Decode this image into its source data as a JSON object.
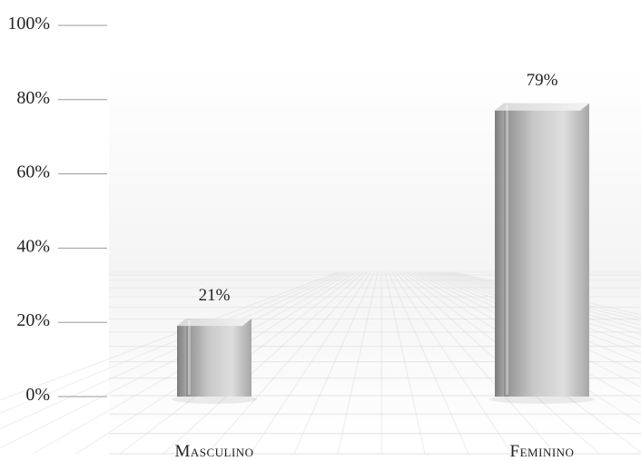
{
  "chart_data": {
    "type": "bar",
    "categories": [
      "Masculino",
      "Feminino"
    ],
    "values": [
      21,
      79
    ],
    "data_labels": [
      "21%",
      "79%"
    ],
    "yticks": [
      "0%",
      "20%",
      "40%",
      "60%",
      "80%",
      "100%"
    ],
    "ylim": [
      0,
      100
    ],
    "title": "",
    "xlabel": "",
    "ylabel": "",
    "grid": false,
    "legend": "none",
    "colors": {
      "bar": "#b9b9b9",
      "bar_light": "#e6e6e6",
      "bar_dark": "#8c8c8c",
      "floor_grid": "#d6d6d6"
    }
  }
}
